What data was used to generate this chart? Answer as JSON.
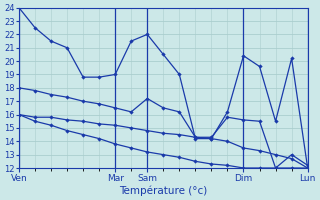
{
  "title": "Température (°c)",
  "bg_color": "#cce8e8",
  "line_color": "#1a3aaa",
  "grid_color": "#aacece",
  "ylim": [
    12,
    24
  ],
  "day_labels": [
    "Ven",
    "Mar",
    "Sam",
    "Dim",
    "Lun"
  ],
  "day_positions": [
    0,
    3,
    4,
    7,
    9
  ],
  "vline_positions": [
    0,
    3,
    4,
    7,
    9
  ],
  "xmin": 0,
  "xmax": 9,
  "series": [
    {
      "x": [
        0,
        0.5,
        1,
        1.5,
        2,
        2.5,
        3,
        3.5,
        4,
        4.5,
        5,
        5.5,
        6,
        6.5,
        7,
        7.5,
        8,
        8.5,
        9
      ],
      "y": [
        24,
        22.5,
        21.5,
        21,
        18.8,
        18.8,
        19,
        21.5,
        22,
        20.5,
        19,
        14.2,
        14.2,
        16.2,
        20.4,
        19.6,
        15.5,
        20.2,
        12
      ]
    },
    {
      "x": [
        0,
        0.5,
        1,
        1.5,
        2,
        2.5,
        3,
        3.5,
        4,
        4.5,
        5,
        5.5,
        6,
        6.5,
        7,
        7.5,
        8,
        8.5,
        9
      ],
      "y": [
        18,
        17.8,
        17.5,
        17.3,
        17.0,
        16.8,
        16.5,
        16.2,
        17.2,
        16.5,
        16.2,
        14.3,
        14.3,
        15.8,
        15.6,
        15.5,
        12.0,
        13.0,
        12.2
      ]
    },
    {
      "x": [
        0,
        0.5,
        1,
        1.5,
        2,
        2.5,
        3,
        3.5,
        4,
        4.5,
        5,
        5.5,
        6,
        6.5,
        7,
        7.5,
        8,
        8.5,
        9
      ],
      "y": [
        16.0,
        15.8,
        15.8,
        15.6,
        15.5,
        15.3,
        15.2,
        15.0,
        14.8,
        14.6,
        14.5,
        14.3,
        14.2,
        14.0,
        13.5,
        13.3,
        13.0,
        12.7,
        12.0
      ]
    },
    {
      "x": [
        0,
        0.5,
        1,
        1.5,
        2,
        2.5,
        3,
        3.5,
        4,
        4.5,
        5,
        5.5,
        6,
        6.5,
        7,
        7.5,
        8,
        8.5,
        9
      ],
      "y": [
        16.0,
        15.5,
        15.2,
        14.8,
        14.5,
        14.2,
        13.8,
        13.5,
        13.2,
        13.0,
        12.8,
        12.5,
        12.3,
        12.2,
        12.0,
        12.0,
        12.0,
        12.0,
        12.0
      ]
    }
  ]
}
